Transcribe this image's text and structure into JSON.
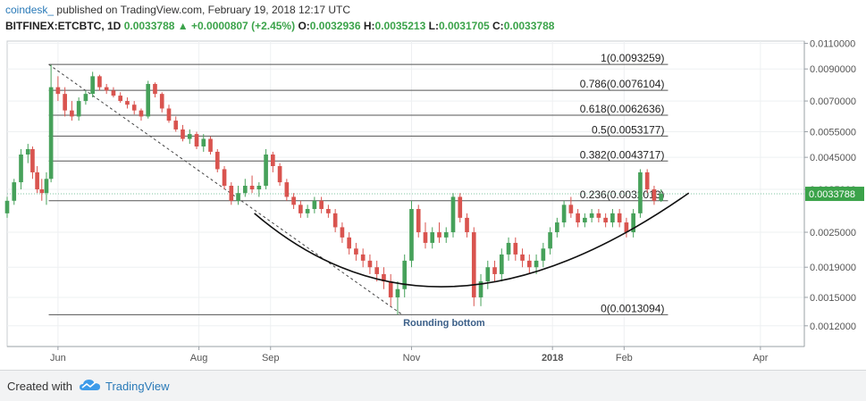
{
  "header": {
    "author": "coindesk_",
    "published": "published on TradingView.com, February 19, 2018 12:17 UTC",
    "symbol": "BITFINEX:ETCBTC, 1D",
    "last": "0.0033788",
    "change_arrow": "▲",
    "change": "+0.0000807 (+2.45%)",
    "o_label": "O:",
    "o": "0.0032936",
    "h_label": "H:",
    "h": "0.0035213",
    "l_label": "L:",
    "l": "0.0031705",
    "c_label": "C:",
    "c": "0.0033788"
  },
  "footer": {
    "created": "Created with",
    "brand": "TradingView"
  },
  "chart_data": {
    "type": "candlestick",
    "y_scale": "log",
    "ylim": [
      0.00102,
      0.0112
    ],
    "x_ticks": [
      {
        "label": "Jun",
        "date": "2017-06-01"
      },
      {
        "label": "Aug",
        "date": "2017-08-01"
      },
      {
        "label": "Sep",
        "date": "2017-09-01"
      },
      {
        "label": "Nov",
        "date": "2017-11-01"
      },
      {
        "label": "2018",
        "date": "2018-01-01"
      },
      {
        "label": "Feb",
        "date": "2018-02-01"
      },
      {
        "label": "Apr",
        "date": "2018-04-01"
      }
    ],
    "x_range": [
      "2017-05-10",
      "2018-04-20"
    ],
    "y_ticks": [
      "0.0110000",
      "0.0090000",
      "0.0070000",
      "0.0055000",
      "0.0045000",
      "0.0035000",
      "0.0025000",
      "0.0019000",
      "0.0015000",
      "0.0012000"
    ],
    "y_tick_values": [
      0.011,
      0.009,
      0.007,
      0.0055,
      0.0045,
      0.0035,
      0.0025,
      0.0019,
      0.0015,
      0.0012
    ],
    "fib_levels": [
      {
        "label": "1(0.0093259)",
        "value": 0.0093259
      },
      {
        "label": "0.786(0.0076104)",
        "value": 0.0076104
      },
      {
        "label": "0.618(0.0062636)",
        "value": 0.0062636
      },
      {
        "label": "0.5(0.0053177)",
        "value": 0.0053177
      },
      {
        "label": "0.382(0.0043717)",
        "value": 0.0043717
      },
      {
        "label": "0.236(0.0032013)",
        "value": 0.0032013
      },
      {
        "label": "0(0.0013094)",
        "value": 0.0013094
      }
    ],
    "fib_start_date": "2017-05-28",
    "fib_end_date": "2018-02-20",
    "last_price": 0.0033788,
    "last_price_label": "0.0033788",
    "annotation": "Rounding bottom",
    "candles_ohlc": [
      [
        "2017-05-10",
        0.0029,
        0.0033,
        0.0028,
        0.0032
      ],
      [
        "2017-05-13",
        0.0032,
        0.0038,
        0.0031,
        0.0037
      ],
      [
        "2017-05-16",
        0.0037,
        0.0048,
        0.0035,
        0.0046
      ],
      [
        "2017-05-19",
        0.0046,
        0.005,
        0.0043,
        0.0048
      ],
      [
        "2017-05-21",
        0.0048,
        0.0049,
        0.0038,
        0.004
      ],
      [
        "2017-05-23",
        0.004,
        0.0042,
        0.0034,
        0.0035
      ],
      [
        "2017-05-25",
        0.0035,
        0.0038,
        0.0032,
        0.0034
      ],
      [
        "2017-05-27",
        0.0034,
        0.004,
        0.0031,
        0.0038
      ],
      [
        "2017-05-29",
        0.0038,
        0.0093,
        0.0037,
        0.0078
      ],
      [
        "2017-06-01",
        0.0078,
        0.0085,
        0.007,
        0.0074
      ],
      [
        "2017-06-04",
        0.0074,
        0.0078,
        0.0062,
        0.0065
      ],
      [
        "2017-06-07",
        0.0065,
        0.007,
        0.006,
        0.0062
      ],
      [
        "2017-06-10",
        0.0062,
        0.0072,
        0.006,
        0.007
      ],
      [
        "2017-06-13",
        0.007,
        0.0076,
        0.0068,
        0.0074
      ],
      [
        "2017-06-16",
        0.0074,
        0.0088,
        0.0072,
        0.0085
      ],
      [
        "2017-06-19",
        0.0085,
        0.0086,
        0.0076,
        0.0078
      ],
      [
        "2017-06-22",
        0.0078,
        0.008,
        0.0074,
        0.0076
      ],
      [
        "2017-06-25",
        0.0076,
        0.0078,
        0.0072,
        0.0073
      ],
      [
        "2017-06-28",
        0.0073,
        0.0075,
        0.0069,
        0.007
      ],
      [
        "2017-07-01",
        0.007,
        0.0072,
        0.0066,
        0.0068
      ],
      [
        "2017-07-04",
        0.0068,
        0.007,
        0.0063,
        0.0065
      ],
      [
        "2017-07-07",
        0.0065,
        0.0066,
        0.006,
        0.0062
      ],
      [
        "2017-07-10",
        0.0062,
        0.0082,
        0.0061,
        0.008
      ],
      [
        "2017-07-13",
        0.008,
        0.0081,
        0.0072,
        0.0074
      ],
      [
        "2017-07-16",
        0.0074,
        0.0075,
        0.0064,
        0.0066
      ],
      [
        "2017-07-19",
        0.0066,
        0.0068,
        0.0059,
        0.006
      ],
      [
        "2017-07-22",
        0.006,
        0.0062,
        0.0055,
        0.0056
      ],
      [
        "2017-07-25",
        0.0056,
        0.0058,
        0.0051,
        0.0052
      ],
      [
        "2017-07-28",
        0.0052,
        0.0056,
        0.005,
        0.0054
      ],
      [
        "2017-07-31",
        0.0054,
        0.0055,
        0.0048,
        0.0049
      ],
      [
        "2017-08-03",
        0.0049,
        0.0054,
        0.0047,
        0.0052
      ],
      [
        "2017-08-06",
        0.0052,
        0.0053,
        0.0046,
        0.0047
      ],
      [
        "2017-08-09",
        0.0047,
        0.0048,
        0.004,
        0.0041
      ],
      [
        "2017-08-12",
        0.0041,
        0.0042,
        0.0035,
        0.0036
      ],
      [
        "2017-08-15",
        0.0036,
        0.0037,
        0.0031,
        0.0032
      ],
      [
        "2017-08-18",
        0.0032,
        0.0036,
        0.0031,
        0.0034
      ],
      [
        "2017-08-21",
        0.0034,
        0.0038,
        0.0033,
        0.0036
      ],
      [
        "2017-08-24",
        0.0036,
        0.0039,
        0.0034,
        0.0035
      ],
      [
        "2017-08-27",
        0.0035,
        0.0037,
        0.0033,
        0.0036
      ],
      [
        "2017-08-30",
        0.0036,
        0.0048,
        0.0035,
        0.0046
      ],
      [
        "2017-09-02",
        0.0046,
        0.0047,
        0.004,
        0.0042
      ],
      [
        "2017-09-05",
        0.0042,
        0.0043,
        0.0036,
        0.0037
      ],
      [
        "2017-09-08",
        0.0037,
        0.0038,
        0.0032,
        0.0033
      ],
      [
        "2017-09-11",
        0.0033,
        0.0034,
        0.003,
        0.0031
      ],
      [
        "2017-09-14",
        0.0031,
        0.0032,
        0.0028,
        0.0029
      ],
      [
        "2017-09-17",
        0.0029,
        0.0031,
        0.0028,
        0.003
      ],
      [
        "2017-09-20",
        0.003,
        0.0033,
        0.0029,
        0.0032
      ],
      [
        "2017-09-23",
        0.0032,
        0.0033,
        0.0029,
        0.003
      ],
      [
        "2017-09-26",
        0.003,
        0.0031,
        0.0028,
        0.0029
      ],
      [
        "2017-09-29",
        0.0029,
        0.003,
        0.0025,
        0.0026
      ],
      [
        "2017-10-02",
        0.0026,
        0.0027,
        0.0023,
        0.0024
      ],
      [
        "2017-10-05",
        0.0024,
        0.0025,
        0.0021,
        0.0022
      ],
      [
        "2017-10-08",
        0.0022,
        0.0023,
        0.002,
        0.0021
      ],
      [
        "2017-10-11",
        0.0021,
        0.0022,
        0.0019,
        0.002
      ],
      [
        "2017-10-14",
        0.002,
        0.0021,
        0.0018,
        0.0019
      ],
      [
        "2017-10-17",
        0.0019,
        0.002,
        0.0017,
        0.0018
      ],
      [
        "2017-10-20",
        0.0018,
        0.0019,
        0.0016,
        0.0017
      ],
      [
        "2017-10-23",
        0.0017,
        0.0018,
        0.0014,
        0.0015
      ],
      [
        "2017-10-26",
        0.0015,
        0.0017,
        0.00131,
        0.0016
      ],
      [
        "2017-10-29",
        0.0016,
        0.0021,
        0.0015,
        0.002
      ],
      [
        "2017-11-01",
        0.002,
        0.0032,
        0.0019,
        0.003
      ],
      [
        "2017-11-04",
        0.003,
        0.0031,
        0.0024,
        0.0025
      ],
      [
        "2017-11-07",
        0.0025,
        0.0027,
        0.0022,
        0.0023
      ],
      [
        "2017-11-10",
        0.0023,
        0.0026,
        0.0022,
        0.0025
      ],
      [
        "2017-11-13",
        0.0025,
        0.0027,
        0.0023,
        0.0024
      ],
      [
        "2017-11-16",
        0.0024,
        0.0026,
        0.0023,
        0.0025
      ],
      [
        "2017-11-19",
        0.0025,
        0.0034,
        0.0024,
        0.0033
      ],
      [
        "2017-11-22",
        0.0033,
        0.0034,
        0.0027,
        0.0028
      ],
      [
        "2017-11-25",
        0.0028,
        0.0029,
        0.0024,
        0.0025
      ],
      [
        "2017-11-28",
        0.0025,
        0.0026,
        0.0014,
        0.0015
      ],
      [
        "2017-12-01",
        0.0015,
        0.0018,
        0.0014,
        0.0017
      ],
      [
        "2017-12-04",
        0.0017,
        0.002,
        0.0016,
        0.0019
      ],
      [
        "2017-12-07",
        0.0019,
        0.002,
        0.0017,
        0.0018
      ],
      [
        "2017-12-10",
        0.0018,
        0.0022,
        0.0017,
        0.0021
      ],
      [
        "2017-12-13",
        0.0021,
        0.0024,
        0.002,
        0.0023
      ],
      [
        "2017-12-16",
        0.0023,
        0.0024,
        0.002,
        0.0021
      ],
      [
        "2017-12-19",
        0.0021,
        0.0022,
        0.0019,
        0.002
      ],
      [
        "2017-12-22",
        0.002,
        0.0021,
        0.0018,
        0.0019
      ],
      [
        "2017-12-25",
        0.0019,
        0.0021,
        0.0018,
        0.002
      ],
      [
        "2017-12-28",
        0.002,
        0.0023,
        0.0019,
        0.0022
      ],
      [
        "2017-12-31",
        0.0022,
        0.0026,
        0.0021,
        0.0025
      ],
      [
        "2018-01-03",
        0.0025,
        0.0028,
        0.0024,
        0.0027
      ],
      [
        "2018-01-06",
        0.0027,
        0.0032,
        0.0026,
        0.0031
      ],
      [
        "2018-01-09",
        0.0031,
        0.0033,
        0.0028,
        0.0029
      ],
      [
        "2018-01-12",
        0.0029,
        0.003,
        0.0026,
        0.0027
      ],
      [
        "2018-01-15",
        0.0027,
        0.0029,
        0.0026,
        0.0028
      ],
      [
        "2018-01-18",
        0.0028,
        0.003,
        0.0027,
        0.0029
      ],
      [
        "2018-01-21",
        0.0029,
        0.003,
        0.0027,
        0.0028
      ],
      [
        "2018-01-24",
        0.0028,
        0.0029,
        0.0026,
        0.0027
      ],
      [
        "2018-01-27",
        0.0027,
        0.003,
        0.0026,
        0.0029
      ],
      [
        "2018-01-30",
        0.0029,
        0.003,
        0.0026,
        0.0027
      ],
      [
        "2018-02-02",
        0.0027,
        0.0028,
        0.0024,
        0.0025
      ],
      [
        "2018-02-05",
        0.0025,
        0.003,
        0.0024,
        0.0029
      ],
      [
        "2018-02-08",
        0.0029,
        0.0041,
        0.0028,
        0.004
      ],
      [
        "2018-02-11",
        0.004,
        0.0041,
        0.0034,
        0.0035
      ],
      [
        "2018-02-14",
        0.0035,
        0.0036,
        0.0031,
        0.0032
      ],
      [
        "2018-02-17",
        0.0032,
        0.0035,
        0.00317,
        0.00338
      ]
    ]
  }
}
